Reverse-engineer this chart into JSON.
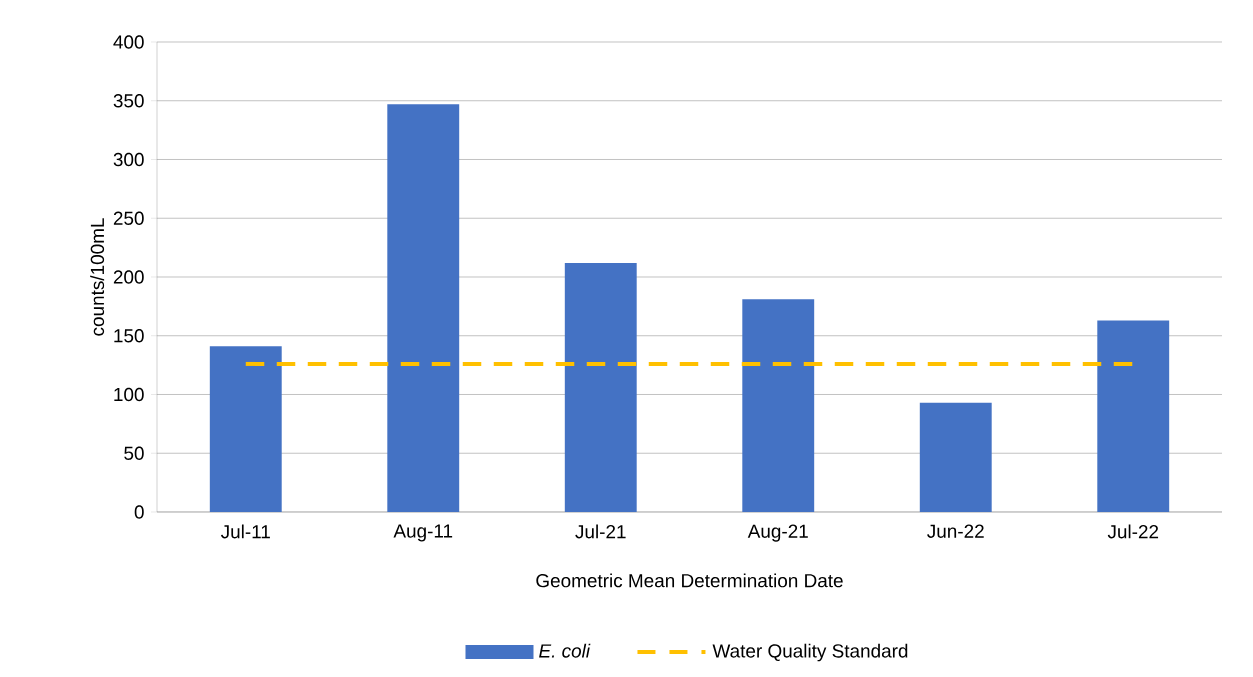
{
  "chart_data": {
    "type": "bar",
    "xlabel": "Geometric Mean Determination Date",
    "ylabel": "counts/100mL",
    "categories": [
      "Jul-11",
      "Aug-11",
      "Jul-21",
      "Aug-21",
      "Jun-22",
      "Jul-22"
    ],
    "series": [
      {
        "name": "*E. coli*",
        "color": "#4472c4",
        "values": [
          141,
          347,
          212,
          181,
          93,
          163
        ]
      },
      {
        "name": "Water Quality Standard",
        "type": "line",
        "color": "#ffc000",
        "line_style": "dashed",
        "marker": "none",
        "values": [
          126,
          126,
          126,
          126,
          126,
          126
        ]
      }
    ],
    "ylim": [
      0,
      400
    ],
    "yticks": [
      0,
      50,
      100,
      150,
      200,
      250,
      300,
      350,
      400
    ],
    "grid": "y",
    "legend": "bottom"
  }
}
